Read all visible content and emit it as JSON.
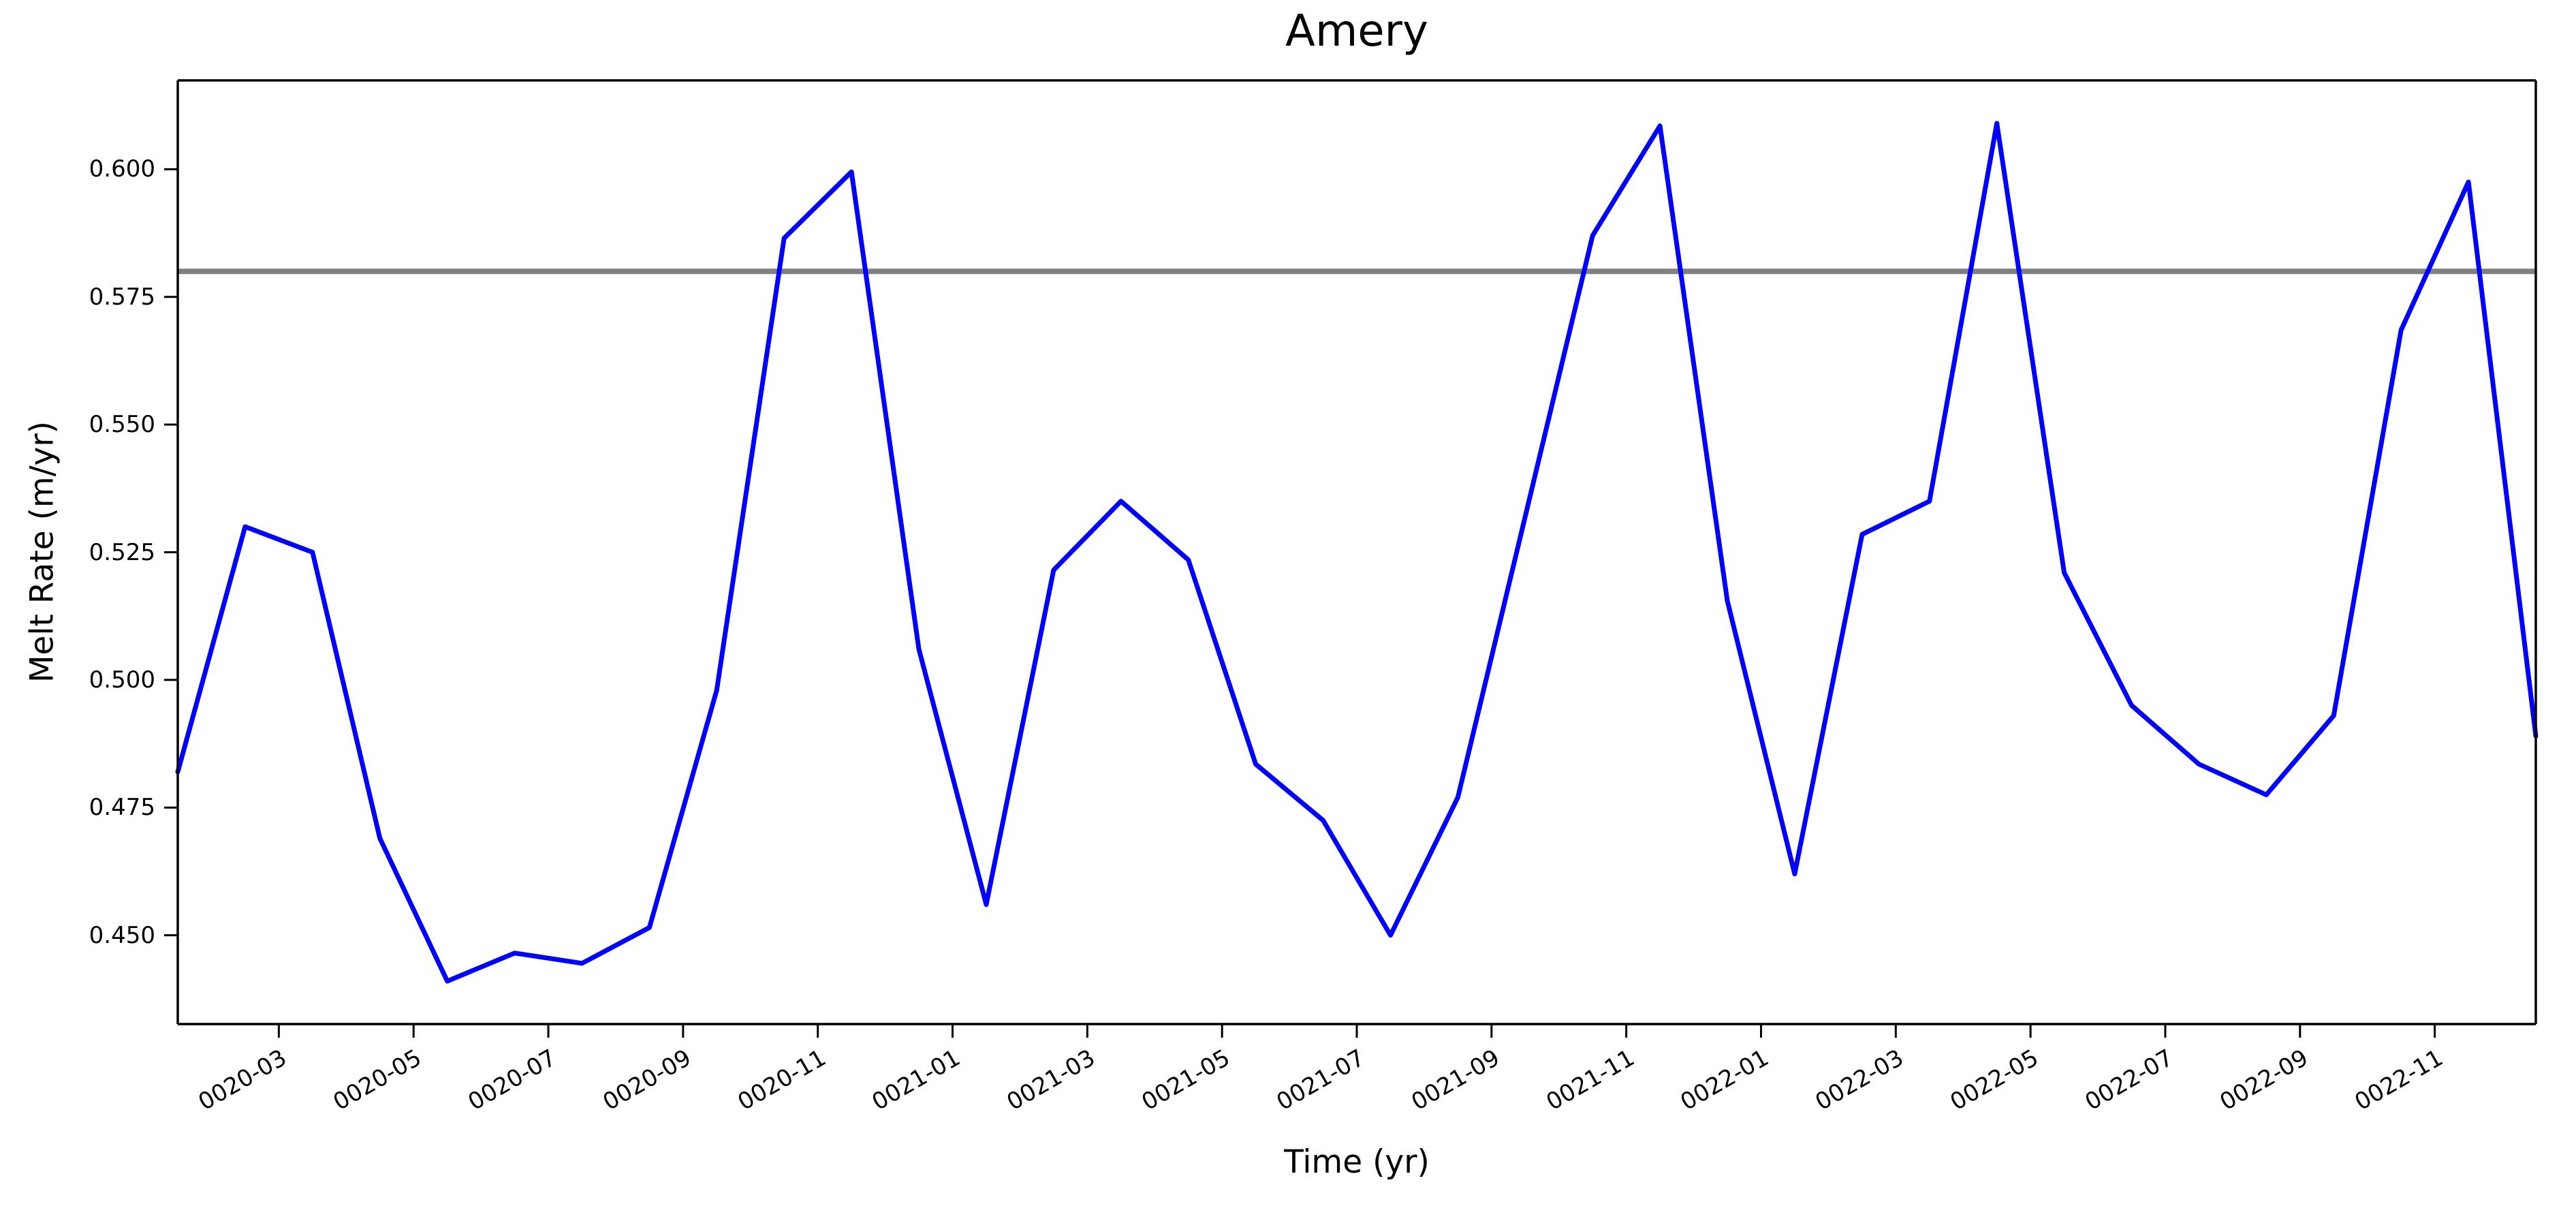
{
  "figure": {
    "background": "#ffffff",
    "text_color": "#000000",
    "spine_color": "#000000"
  },
  "chart_data": {
    "type": "line",
    "title": "Amery",
    "xlabel": "Time (yr)",
    "ylabel": "Melt Rate (m/yr)",
    "categories": [
      "0020-01",
      "0020-02",
      "0020-03",
      "0020-04",
      "0020-05",
      "0020-06",
      "0020-07",
      "0020-08",
      "0020-09",
      "0020-10",
      "0020-11",
      "0020-12",
      "0021-01",
      "0021-02",
      "0021-03",
      "0021-04",
      "0021-05",
      "0021-06",
      "0021-07",
      "0021-08",
      "0021-09",
      "0021-10",
      "0021-11",
      "0021-12",
      "0022-01",
      "0022-02",
      "0022-03",
      "0022-04",
      "0022-05",
      "0022-06",
      "0022-07",
      "0022-08",
      "0022-09",
      "0022-10",
      "0022-11",
      "0022-12"
    ],
    "series": [
      {
        "name": "melt-rate",
        "color": "#0000ff",
        "values": [
          0.482,
          0.53,
          0.525,
          0.469,
          0.441,
          0.4465,
          0.4445,
          0.4515,
          0.498,
          0.5865,
          0.5995,
          0.506,
          0.456,
          0.5215,
          0.535,
          0.5235,
          0.4835,
          0.4725,
          0.45,
          0.477,
          0.532,
          0.587,
          0.6085,
          0.5155,
          0.462,
          0.5285,
          0.535,
          0.609,
          0.521,
          0.495,
          0.4835,
          0.4775,
          0.493,
          0.5685,
          0.5975,
          0.489
        ]
      }
    ],
    "reference_line": {
      "value": 0.58,
      "color": "#808080"
    },
    "ylim": [
      0.4326,
      0.6174
    ],
    "yticks": [
      0.45,
      0.475,
      0.5,
      0.525,
      0.55,
      0.575,
      0.6
    ],
    "ytick_labels": [
      "0.450",
      "0.475",
      "0.500",
      "0.525",
      "0.550",
      "0.575",
      "0.600"
    ],
    "xtick_months": [
      2,
      4,
      6,
      8,
      10,
      12,
      14,
      16,
      18,
      20,
      22,
      24,
      26,
      28,
      30,
      32,
      34
    ],
    "xtick_labels": [
      "0020-03",
      "0020-05",
      "0020-07",
      "0020-09",
      "0020-11",
      "0021-01",
      "0021-03",
      "0021-05",
      "0021-07",
      "0021-09",
      "0021-11",
      "0022-01",
      "0022-03",
      "0022-05",
      "0022-07",
      "0022-09",
      "0022-11"
    ],
    "legend": "none",
    "grid": false
  }
}
